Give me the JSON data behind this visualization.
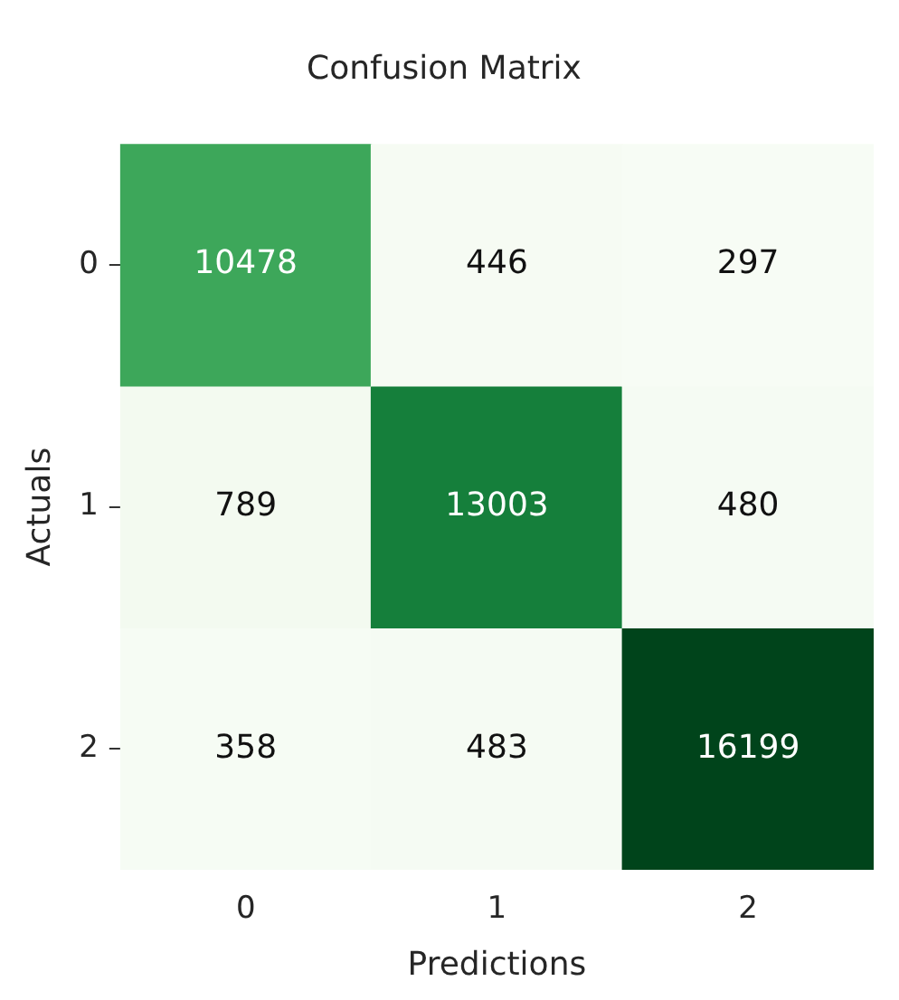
{
  "chart_data": {
    "type": "heatmap",
    "title": "Confusion Matrix",
    "xlabel": "Predictions",
    "ylabel": "Actuals",
    "categories": [
      "0",
      "1",
      "2"
    ],
    "y_categories": [
      "0",
      "1",
      "2"
    ],
    "cells": [
      [
        10478,
        446,
        297
      ],
      [
        789,
        13003,
        480
      ],
      [
        358,
        483,
        16199
      ]
    ],
    "data_labels": true,
    "grid": false,
    "legend": false
  }
}
